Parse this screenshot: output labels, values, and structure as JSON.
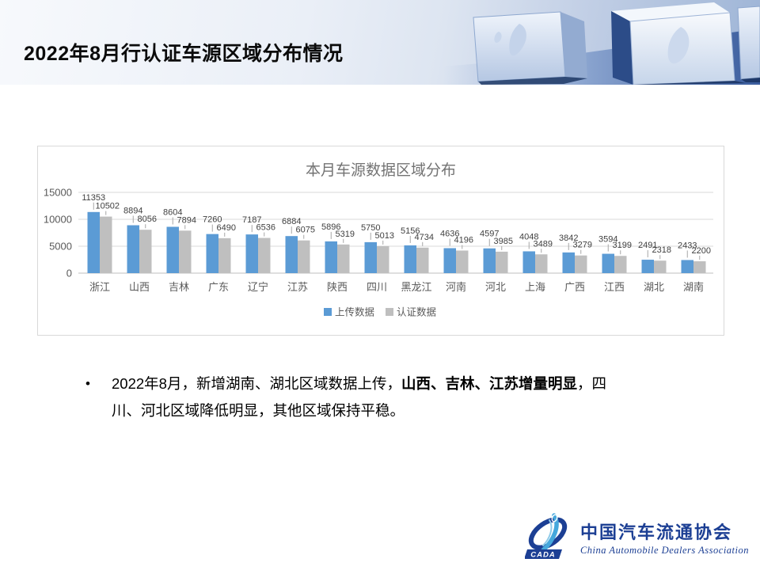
{
  "slide": {
    "title": "2022年8月行认证车源区域分布情况"
  },
  "chart_data": {
    "type": "bar",
    "title": "本月车源数据区域分布",
    "categories": [
      "浙江",
      "山西",
      "吉林",
      "广东",
      "辽宁",
      "江苏",
      "陕西",
      "四川",
      "黑龙江",
      "河南",
      "河北",
      "上海",
      "广西",
      "江西",
      "湖北",
      "湖南"
    ],
    "series": [
      {
        "name": "上传数据",
        "color": "#5B9BD5",
        "values": [
          11353,
          8894,
          8604,
          7260,
          7187,
          6884,
          5896,
          5750,
          5156,
          4636,
          4597,
          4048,
          3842,
          3594,
          2491,
          2433
        ]
      },
      {
        "name": "认证数据",
        "color": "#BFBFBF",
        "values": [
          10502,
          8056,
          7894,
          6490,
          6536,
          6075,
          5319,
          5013,
          4734,
          4196,
          3985,
          3489,
          3279,
          3199,
          2318,
          2200
        ]
      }
    ],
    "ylim": [
      0,
      15000
    ],
    "yticks": [
      0,
      5000,
      10000,
      15000
    ],
    "grid": true,
    "data_labels": true,
    "legend_position": "bottom",
    "colors": {
      "axis_text": "#595959",
      "data_label_text": "#404040",
      "title_text": "#737373",
      "gridline": "#dadada",
      "baseline": "#bfbfbf",
      "leader_line": "#a6a6a6"
    }
  },
  "bullet": {
    "marker": "•",
    "text_before": "2022年8月，新增湖南、湖北区域数据上传，",
    "text_bold": "山西、吉林、江苏增量明显",
    "text_after": "，四川、河北区域降低明显，其他区域保持平稳。"
  },
  "logo": {
    "acronym": "CADA",
    "name_cn": "中国汽车流通协会",
    "name_en": "China Automobile Dealers Association",
    "brand_color": "#1C3F94",
    "accent_color": "#45A8DC"
  }
}
